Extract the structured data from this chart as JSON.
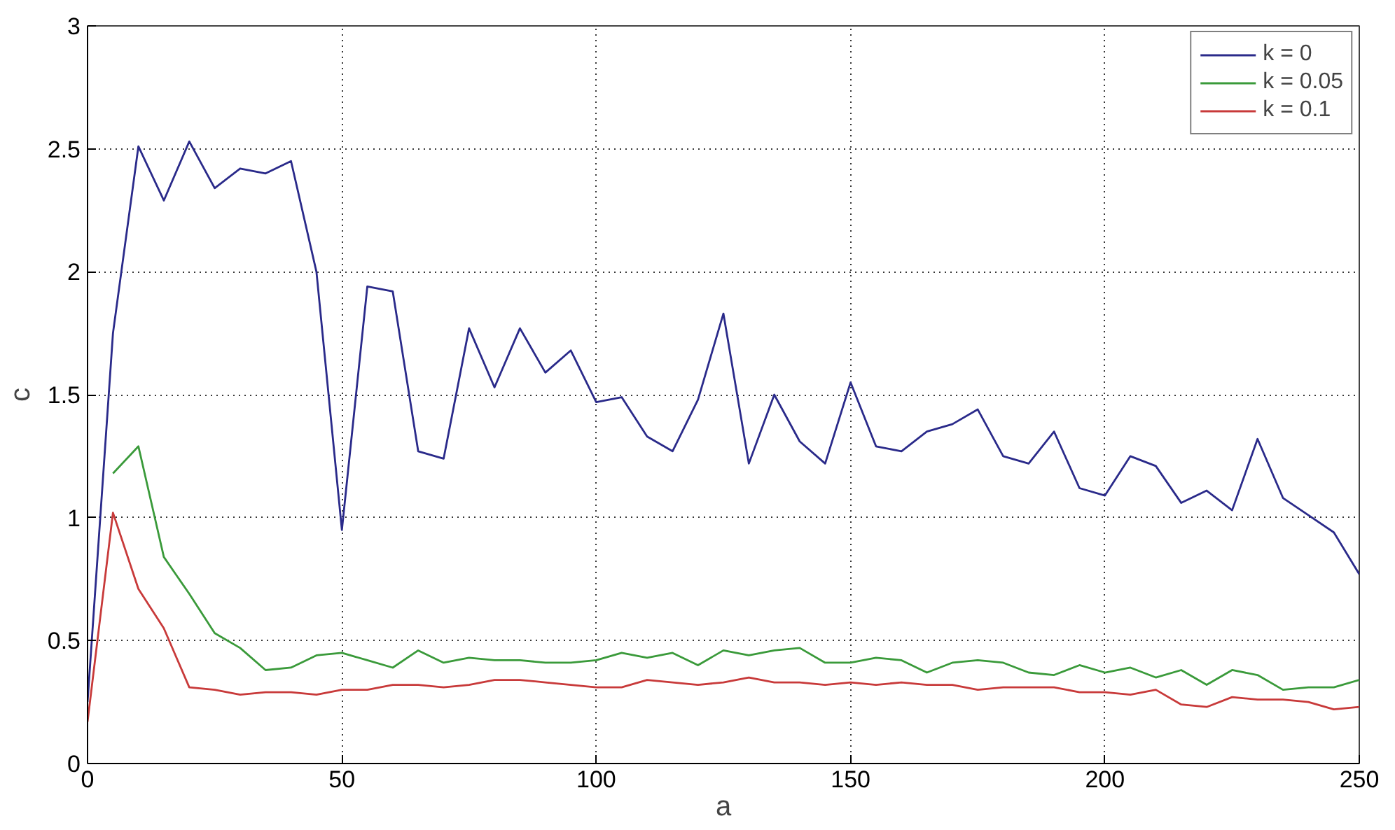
{
  "chart_data": {
    "type": "line",
    "xlabel": "a",
    "ylabel": "c",
    "x": [
      0,
      5,
      10,
      15,
      20,
      25,
      30,
      35,
      40,
      45,
      50,
      55,
      60,
      65,
      70,
      75,
      80,
      85,
      90,
      95,
      100,
      105,
      110,
      115,
      120,
      125,
      130,
      135,
      140,
      145,
      150,
      155,
      160,
      165,
      170,
      175,
      180,
      185,
      190,
      195,
      200,
      205,
      210,
      215,
      220,
      225,
      230,
      235,
      240,
      245,
      250
    ],
    "series": [
      {
        "name": "k = 0",
        "color": "#2a2a8a",
        "values": [
          0.25,
          1.75,
          2.51,
          2.29,
          2.53,
          2.34,
          2.42,
          2.4,
          2.45,
          2.0,
          0.95,
          1.94,
          1.92,
          1.27,
          1.24,
          1.77,
          1.53,
          1.77,
          1.59,
          1.68,
          1.47,
          1.49,
          1.33,
          1.27,
          1.48,
          1.83,
          1.22,
          1.5,
          1.31,
          1.22,
          1.55,
          1.29,
          1.27,
          1.35,
          1.38,
          1.44,
          1.25,
          1.22,
          1.35,
          1.12,
          1.09,
          1.25,
          1.21,
          1.06,
          1.11,
          1.03,
          1.32,
          1.08,
          1.01,
          0.94,
          0.77
        ]
      },
      {
        "name": "k = 0.05",
        "color": "#3a9a3a",
        "values": [
          null,
          1.18,
          1.29,
          0.84,
          0.69,
          0.53,
          0.47,
          0.38,
          0.39,
          0.44,
          0.45,
          0.42,
          0.39,
          0.46,
          0.41,
          0.43,
          0.42,
          0.42,
          0.41,
          0.41,
          0.42,
          0.45,
          0.43,
          0.45,
          0.4,
          0.46,
          0.44,
          0.46,
          0.47,
          0.41,
          0.41,
          0.43,
          0.42,
          0.37,
          0.41,
          0.42,
          0.41,
          0.37,
          0.36,
          0.4,
          0.37,
          0.39,
          0.35,
          0.38,
          0.32,
          0.38,
          0.36,
          0.3,
          0.31,
          0.31,
          0.34
        ]
      },
      {
        "name": "k = 0.1",
        "color": "#c83a3a",
        "values": [
          0.17,
          1.02,
          0.71,
          0.55,
          0.31,
          0.3,
          0.28,
          0.29,
          0.29,
          0.28,
          0.3,
          0.3,
          0.32,
          0.32,
          0.31,
          0.32,
          0.34,
          0.34,
          0.33,
          0.32,
          0.31,
          0.31,
          0.34,
          0.33,
          0.32,
          0.33,
          0.35,
          0.33,
          0.33,
          0.32,
          0.33,
          0.32,
          0.33,
          0.32,
          0.32,
          0.3,
          0.31,
          0.31,
          0.31,
          0.29,
          0.29,
          0.28,
          0.3,
          0.24,
          0.23,
          0.27,
          0.26,
          0.26,
          0.25,
          0.22,
          0.23
        ]
      }
    ],
    "xlim": [
      0,
      250
    ],
    "ylim": [
      0,
      3
    ],
    "xticks": [
      0,
      50,
      100,
      150,
      200,
      250
    ],
    "yticks": [
      0,
      0.5,
      1,
      1.5,
      2,
      2.5,
      3
    ],
    "grid": true,
    "legend": "top right",
    "line_style": "solid",
    "marker": "none"
  }
}
